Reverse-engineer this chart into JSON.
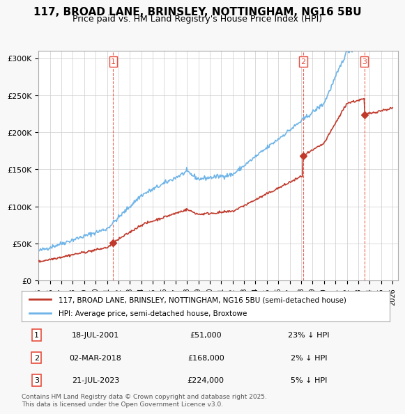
{
  "title": "117, BROAD LANE, BRINSLEY, NOTTINGHAM, NG16 5BU",
  "subtitle": "Price paid vs. HM Land Registry's House Price Index (HPI)",
  "ylabel_ticks": [
    "£0",
    "£50K",
    "£100K",
    "£150K",
    "£200K",
    "£250K",
    "£300K"
  ],
  "ytick_vals": [
    0,
    50000,
    100000,
    150000,
    200000,
    250000,
    300000
  ],
  "ylim": [
    0,
    310000
  ],
  "xlim_start": 1995.0,
  "xlim_end": 2026.5,
  "hpi_color": "#6eb4e8",
  "price_color": "#c0392b",
  "vline_color": "#e74c3c",
  "legend_label_price": "117, BROAD LANE, BRINSLEY, NOTTINGHAM, NG16 5BU (semi-detached house)",
  "legend_label_hpi": "HPI: Average price, semi-detached house, Broxtowe",
  "transactions": [
    {
      "num": 1,
      "date": "18-JUL-2001",
      "price": 51000,
      "hpi_diff": "23% ↓ HPI",
      "x": 2001.54
    },
    {
      "num": 2,
      "date": "02-MAR-2018",
      "price": 168000,
      "hpi_diff": "2% ↓ HPI",
      "x": 2018.17
    },
    {
      "num": 3,
      "date": "21-JUL-2023",
      "price": 224000,
      "hpi_diff": "5% ↓ HPI",
      "x": 2023.54
    }
  ],
  "footer_line1": "Contains HM Land Registry data © Crown copyright and database right 2025.",
  "footer_line2": "This data is licensed under the Open Government Licence v3.0.",
  "background_color": "#f8f8f8",
  "plot_bg_color": "#ffffff"
}
